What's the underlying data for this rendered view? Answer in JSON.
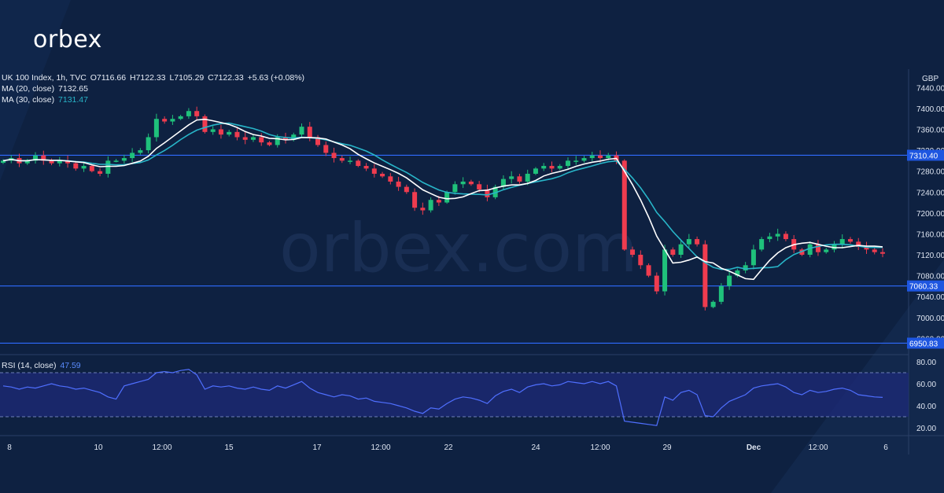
{
  "brand": {
    "logo_text": "orbex",
    "watermark": "orbex.com"
  },
  "legend": {
    "symbol_line": {
      "name": "UK 100 Index, 1h, TVC",
      "open": "O7116.66",
      "high": "H7122.33",
      "low": "L7105.29",
      "close": "C7122.33",
      "change": "+5.63 (+0.08%)"
    },
    "ma20": {
      "label": "MA (20, close)",
      "value": "7132.65"
    },
    "ma30": {
      "label": "MA (30, close)",
      "value": "7131.47"
    },
    "rsi": {
      "label": "RSI (14, close)",
      "value": "47.59"
    }
  },
  "colors": {
    "background": "#0e2141",
    "bullish": "#1fc17b",
    "bearish": "#ef3c4f",
    "ma20": "#ffffff",
    "ma30": "#28b5c8",
    "levels": "#2f6bff",
    "rsi_line": "#4f6fff",
    "rsi_band": "#1e2a78"
  },
  "chart_data": {
    "type": "candlestick",
    "currency": "GBP",
    "price_axis": {
      "range": [
        6950,
        7445
      ],
      "ticks": [
        7440,
        7400,
        7360,
        7320,
        7280,
        7240,
        7200,
        7160,
        7120,
        7080,
        7040,
        7000,
        6960
      ]
    },
    "time_axis": {
      "labels": [
        "8",
        "10",
        "12:00",
        "15",
        "17",
        "12:00",
        "22",
        "24",
        "12:00",
        "29",
        "Dec",
        "12:00",
        "6"
      ]
    },
    "horizontal_levels": [
      7310.4,
      7060.33,
      6950.83
    ],
    "ma20_last": 7132.65,
    "ma30_last": 7131.47,
    "close_path": [
      7300,
      7305,
      7295,
      7300,
      7310,
      7300,
      7295,
      7300,
      7295,
      7285,
      7290,
      7280,
      7275,
      7300,
      7300,
      7305,
      7315,
      7320,
      7345,
      7380,
      7375,
      7380,
      7385,
      7395,
      7385,
      7355,
      7360,
      7350,
      7355,
      7345,
      7340,
      7345,
      7335,
      7330,
      7345,
      7340,
      7350,
      7365,
      7345,
      7330,
      7315,
      7305,
      7300,
      7300,
      7290,
      7285,
      7275,
      7270,
      7260,
      7250,
      7240,
      7210,
      7205,
      7225,
      7220,
      7240,
      7255,
      7260,
      7255,
      7245,
      7230,
      7250,
      7265,
      7270,
      7260,
      7275,
      7285,
      7290,
      7285,
      7290,
      7300,
      7300,
      7305,
      7310,
      7305,
      7310,
      7300,
      7130,
      7120,
      7100,
      7080,
      7050,
      7130,
      7120,
      7140,
      7150,
      7140,
      7020,
      7030,
      7060,
      7080,
      7090,
      7100,
      7130,
      7150,
      7155,
      7160,
      7150,
      7130,
      7120,
      7140,
      7125,
      7130,
      7140,
      7150,
      7145,
      7135,
      7130,
      7125,
      7122
    ],
    "rsi": {
      "range": [
        15,
        85
      ],
      "ticks": [
        80,
        60,
        40,
        20
      ],
      "upper": 70,
      "lower": 30,
      "last": 47.59,
      "values": [
        58,
        57,
        55,
        57,
        56,
        58,
        60,
        58,
        57,
        55,
        56,
        54,
        52,
        48,
        46,
        58,
        60,
        62,
        64,
        70,
        71,
        70,
        72,
        73,
        68,
        55,
        58,
        57,
        58,
        56,
        55,
        57,
        55,
        54,
        58,
        56,
        59,
        62,
        56,
        52,
        50,
        48,
        50,
        49,
        46,
        47,
        44,
        43,
        42,
        40,
        38,
        35,
        33,
        38,
        37,
        42,
        46,
        48,
        47,
        45,
        42,
        49,
        53,
        55,
        52,
        57,
        59,
        60,
        58,
        59,
        62,
        61,
        60,
        62,
        60,
        62,
        58,
        26,
        25,
        24,
        23,
        22,
        48,
        45,
        52,
        54,
        50,
        31,
        30,
        38,
        44,
        47,
        50,
        56,
        58,
        59,
        60,
        57,
        52,
        50,
        54,
        52,
        53,
        55,
        56,
        54,
        50,
        49,
        48,
        47.59
      ]
    }
  }
}
